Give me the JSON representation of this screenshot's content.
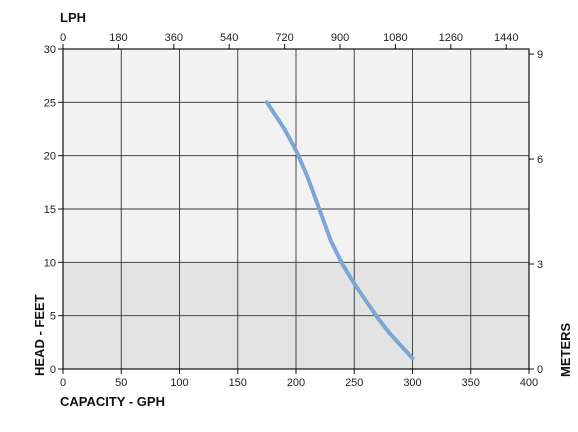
{
  "chart_data": {
    "type": "line",
    "title": "",
    "bottom_axis": {
      "label": "CAPACITY - GPH",
      "range": [
        0,
        400
      ],
      "ticks": [
        "0",
        "50",
        "100",
        "150",
        "200",
        "250",
        "300",
        "350",
        "400"
      ]
    },
    "top_axis": {
      "label": "LPH",
      "range": [
        0,
        1514
      ],
      "ticks": [
        "0",
        "180",
        "360",
        "540",
        "720",
        "900",
        "1080",
        "1260",
        "1440"
      ]
    },
    "left_axis": {
      "label": "HEAD - FEET",
      "range": [
        0,
        30
      ],
      "ticks": [
        "0",
        "5",
        "10",
        "15",
        "20",
        "25",
        "30"
      ]
    },
    "right_axis": {
      "label": "METERS",
      "range": [
        0,
        9.144
      ],
      "ticks": [
        "0",
        "3",
        "6",
        "9"
      ]
    },
    "grid": true,
    "series": [
      {
        "color": "#7aa7d4",
        "x": [
          175,
          190,
          200,
          210,
          220,
          230,
          240,
          250,
          260,
          270,
          280,
          290,
          300
        ],
        "y": [
          25,
          22.5,
          20.5,
          18,
          15,
          12,
          9.8,
          8,
          6.4,
          4.8,
          3.4,
          2.2,
          1
        ]
      }
    ]
  },
  "colors": {
    "plot_background_upper": "#f2f2f2",
    "plot_background_lower": "#e3e3e3",
    "grid": "#333333",
    "curve": "#7aa7d4"
  }
}
